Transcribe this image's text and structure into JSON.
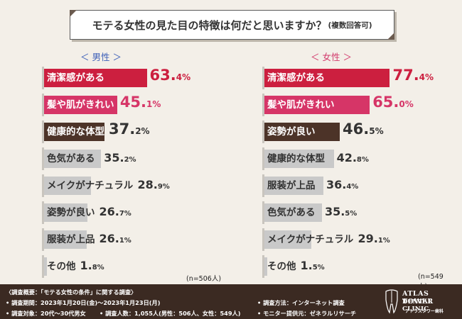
{
  "title": {
    "main": "モテる女性の見た目の特徴は何だと思いますか？",
    "sub": "(複数回答可)"
  },
  "chart_data": [
    {
      "type": "bar",
      "gender_label": "＜ 男性 ＞",
      "n_label": "(n=506人)",
      "categories": [
        "清潔感がある",
        "髪や肌がきれい",
        "健康的な体型",
        "色気がある",
        "メイクがナチュラル",
        "姿勢が良い",
        "服装が上品",
        "その他"
      ],
      "values": [
        63.4,
        45.1,
        37.2,
        35.2,
        28.9,
        26.7,
        26.1,
        1.8
      ],
      "value_labels": [
        {
          "num": "63.",
          "unit": "4%"
        },
        {
          "num": "45.",
          "unit": "1%"
        },
        {
          "num": "37.",
          "unit": "2%"
        },
        {
          "num": "35.",
          "unit": "2%"
        },
        {
          "num": "28.",
          "unit": "9%"
        },
        {
          "num": "26.",
          "unit": "7%"
        },
        {
          "num": "26.",
          "unit": "1%"
        },
        {
          "num": "1.",
          "unit": "8%"
        }
      ],
      "colors": [
        "#cc1f3f",
        "#d63567",
        "#4c3328",
        "#c9c9c9",
        "#c9c9c9",
        "#c9c9c9",
        "#c9c9c9",
        "#c9c9c9"
      ]
    },
    {
      "type": "bar",
      "gender_label": "＜ 女性 ＞",
      "n_label": "(n=549人)",
      "categories": [
        "清潔感がある",
        "髪や肌がきれい",
        "姿勢が良い",
        "健康的な体型",
        "服装が上品",
        "色気がある",
        "メイクがナチュラル",
        "その他"
      ],
      "values": [
        77.4,
        65.0,
        46.5,
        42.8,
        36.4,
        35.5,
        29.1,
        1.5
      ],
      "value_labels": [
        {
          "num": "77.",
          "unit": "4%"
        },
        {
          "num": "65.",
          "unit": "0%"
        },
        {
          "num": "46.",
          "unit": "5%"
        },
        {
          "num": "42.",
          "unit": "8%"
        },
        {
          "num": "36.",
          "unit": "4%"
        },
        {
          "num": "35.",
          "unit": "5%"
        },
        {
          "num": "29.",
          "unit": "1%"
        },
        {
          "num": "1.",
          "unit": "5%"
        }
      ],
      "colors": [
        "#cc1f3f",
        "#d63567",
        "#4c3328",
        "#c9c9c9",
        "#c9c9c9",
        "#c9c9c9",
        "#c9c9c9",
        "#c9c9c9"
      ]
    }
  ],
  "footer": {
    "overview": "〈調査概要：「モテる女性の条件」に関する調査〉",
    "period": "• 調査期間：2023年1月20日(金)〜2023年1月23日(月)",
    "target": "• 調査対象：20代〜30代男女",
    "count": "• 調査人数：1,055人(男性：506人、女性：549人)",
    "method": "• 調査方法：インターネット調査",
    "provider": "• モニター提供元：ゼネラルリサーチ",
    "logo_line1": "ATLAS TOWER",
    "logo_line2": "DENTAL CLINIC",
    "logo_line3": "アトラスタワー歯科"
  }
}
